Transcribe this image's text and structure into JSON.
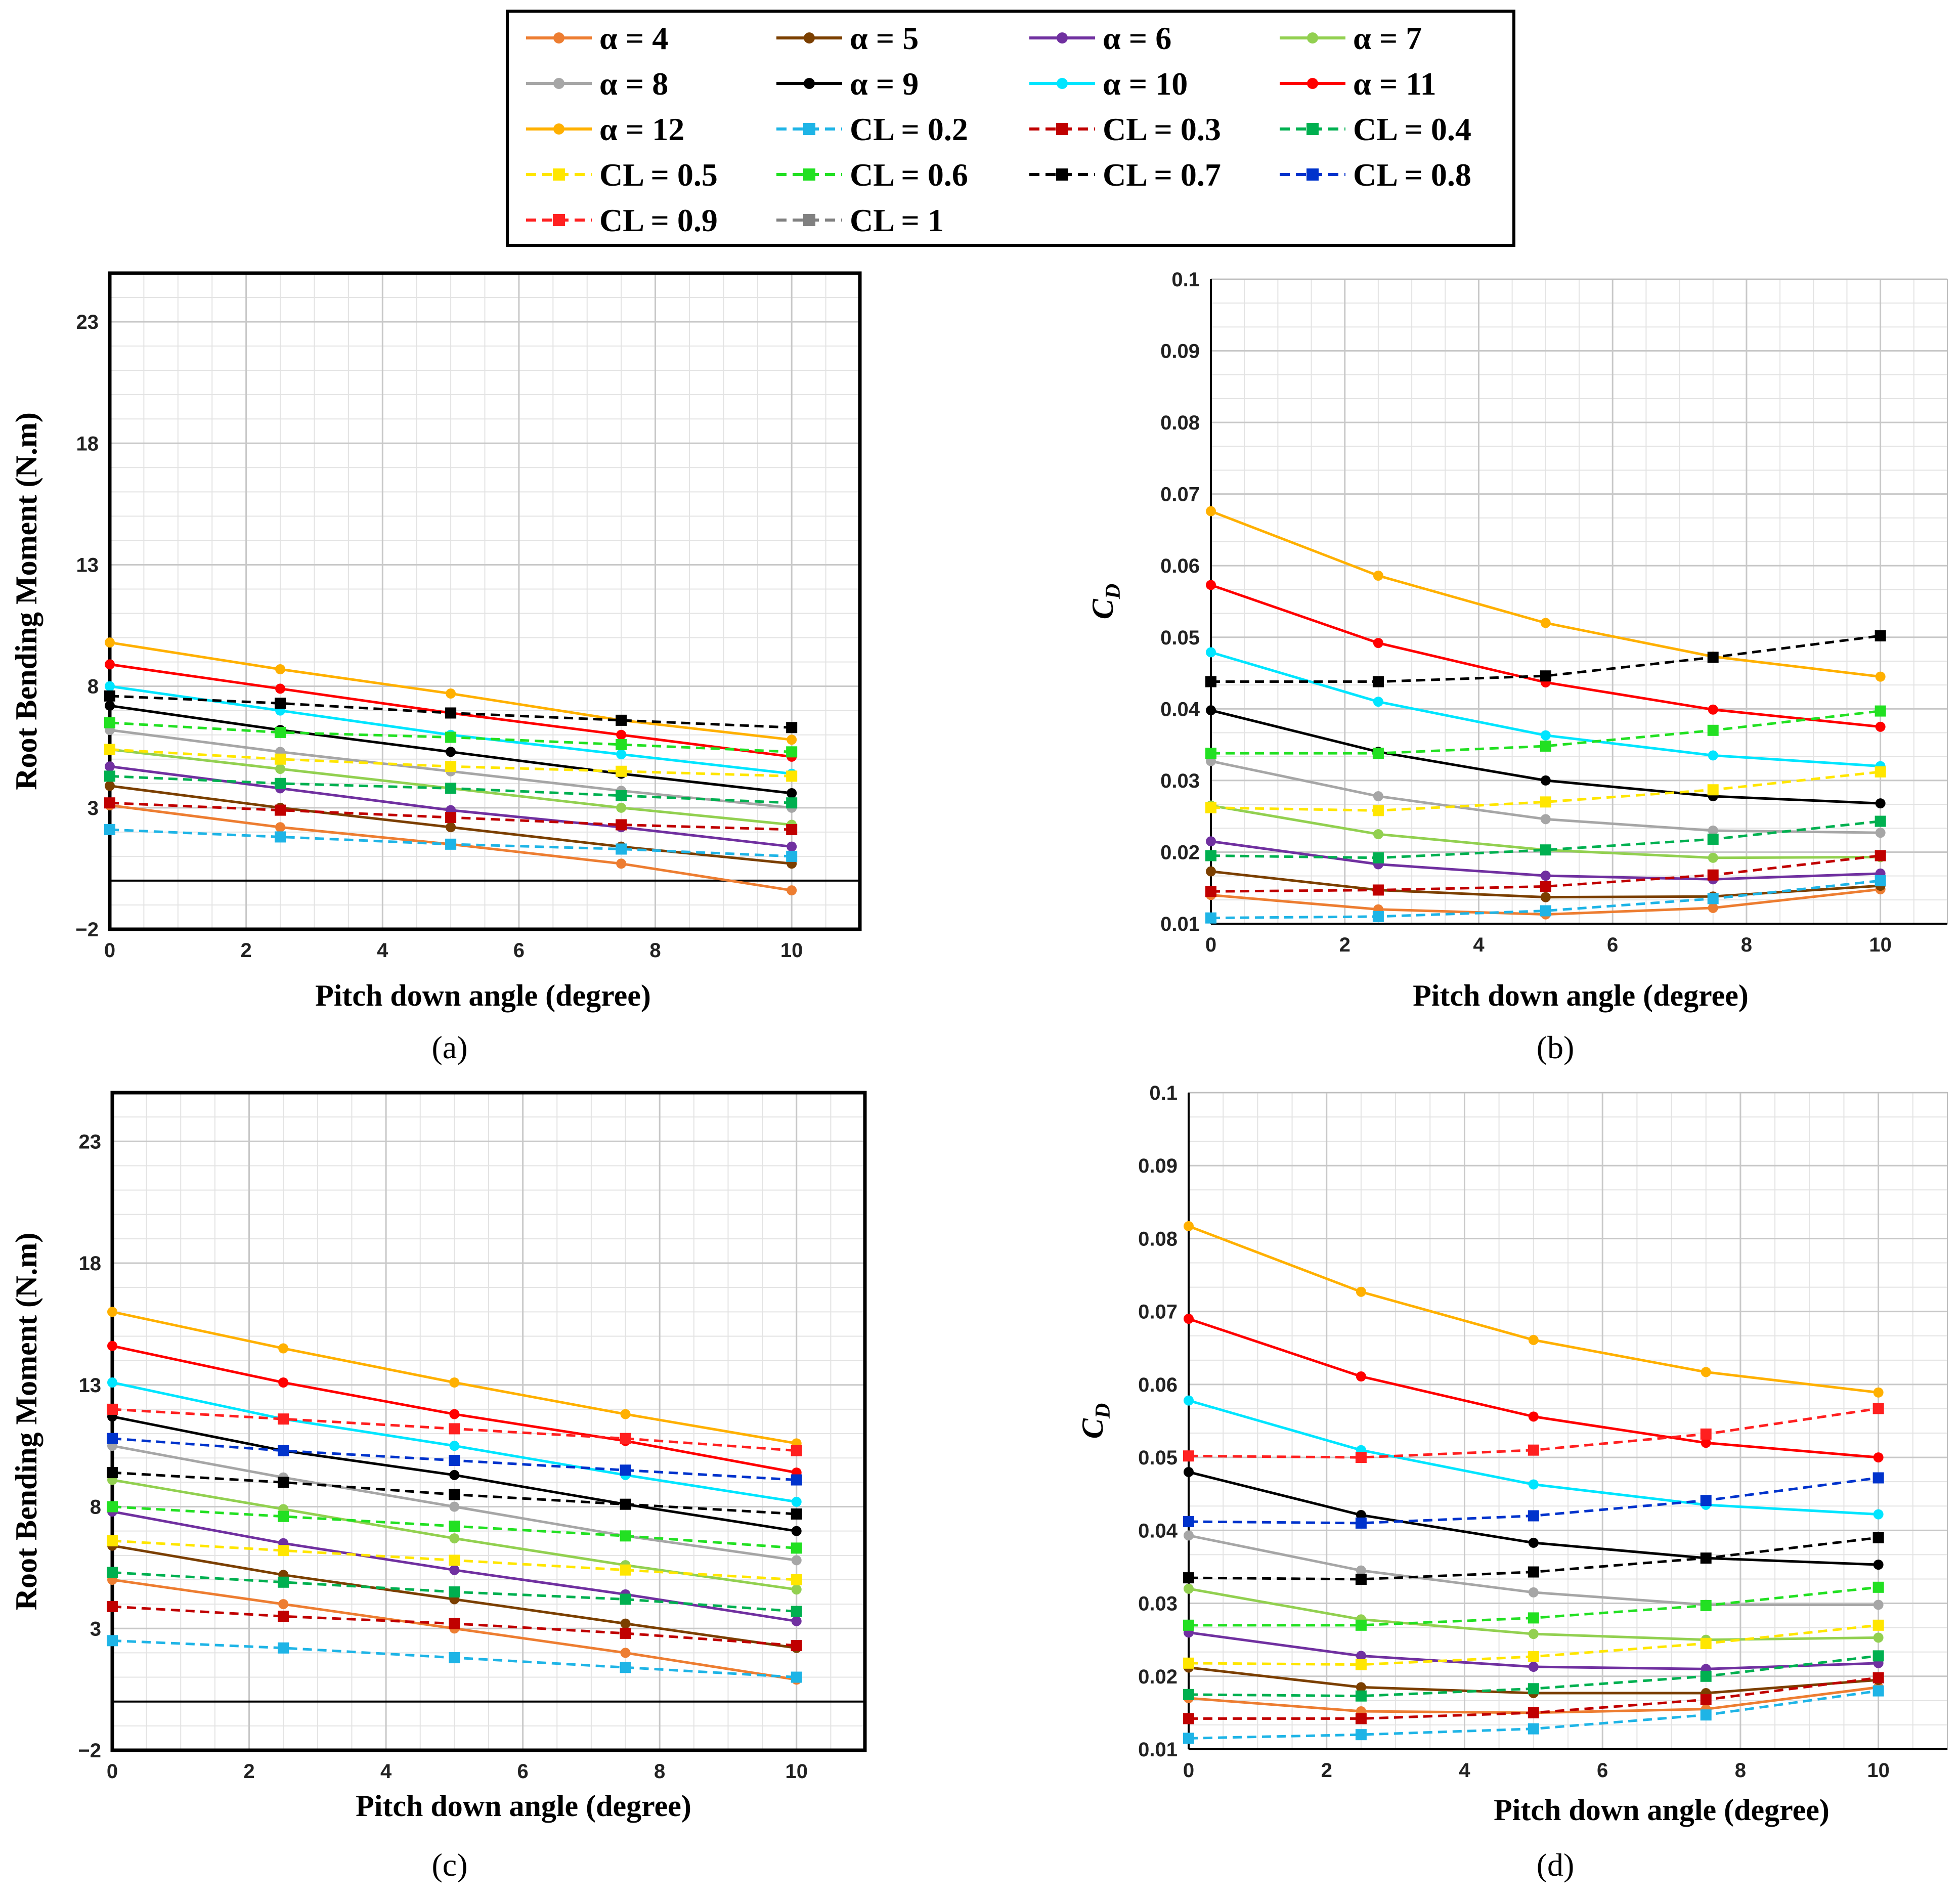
{
  "figure": {
    "panel_labels": [
      "(a)",
      "(b)",
      "(c)",
      "(d)"
    ]
  },
  "legend": [
    {
      "label": "α = 4",
      "color": "#ED7D31",
      "style": "solid",
      "marker": "circle"
    },
    {
      "label": "α = 5",
      "color": "#7B3F00",
      "style": "solid",
      "marker": "circle"
    },
    {
      "label": "α = 6",
      "color": "#7030A0",
      "style": "solid",
      "marker": "circle"
    },
    {
      "label": "α = 7",
      "color": "#92D050",
      "style": "solid",
      "marker": "circle"
    },
    {
      "label": "α = 8",
      "color": "#A6A6A6",
      "style": "solid",
      "marker": "circle"
    },
    {
      "label": "α = 9",
      "color": "#000000",
      "style": "solid",
      "marker": "circle"
    },
    {
      "label": "α = 10",
      "color": "#00E5FF",
      "style": "solid",
      "marker": "circle"
    },
    {
      "label": "α = 11",
      "color": "#FF0000",
      "style": "solid",
      "marker": "circle"
    },
    {
      "label": "α = 12",
      "color": "#FFB000",
      "style": "solid",
      "marker": "circle"
    },
    {
      "label": "CL = 0.2",
      "color": "#1EB4E6",
      "style": "dashed",
      "marker": "square"
    },
    {
      "label": "CL = 0.3",
      "color": "#C00000",
      "style": "dashed",
      "marker": "square"
    },
    {
      "label": "CL = 0.4",
      "color": "#00B050",
      "style": "dashed",
      "marker": "square"
    },
    {
      "label": "CL = 0.5",
      "color": "#FFE600",
      "style": "dashed",
      "marker": "square"
    },
    {
      "label": "CL = 0.6",
      "color": "#22E022",
      "style": "dashed",
      "marker": "square"
    },
    {
      "label": "CL = 0.7",
      "color": "#000000",
      "style": "dashed",
      "marker": "square"
    },
    {
      "label": "CL = 0.8",
      "color": "#0033CC",
      "style": "dashed",
      "marker": "square"
    },
    {
      "label": "CL = 0.9",
      "color": "#FF2020",
      "style": "dashed",
      "marker": "square"
    },
    {
      "label": "CL = 1",
      "color": "#808080",
      "style": "dashed",
      "marker": "square"
    }
  ],
  "chart_data": [
    {
      "id": "a",
      "type": "line",
      "panel_label": "(a)",
      "xlabel": "Pitch down angle (degree)",
      "ylabel": "Root Bending Moment (N.m)",
      "xlim": [
        0,
        11
      ],
      "ylim": [
        -2,
        25
      ],
      "xticks": [
        0,
        2,
        4,
        6,
        8,
        10
      ],
      "xtick_labels": [
        "0",
        "2",
        "4",
        "6",
        "8",
        "10"
      ],
      "yticks": [
        -2,
        3,
        8,
        13,
        18,
        23
      ],
      "ytick_labels": [
        "−2",
        "3",
        "8",
        "13",
        "18",
        "23"
      ],
      "x": [
        0,
        2.5,
        5,
        7.5,
        10
      ],
      "series": [
        {
          "name": "α = 4",
          "values": [
            3.1,
            2.2,
            1.5,
            0.7,
            -0.4
          ]
        },
        {
          "name": "α = 5",
          "values": [
            3.9,
            3.0,
            2.2,
            1.4,
            0.7
          ]
        },
        {
          "name": "α = 6",
          "values": [
            4.7,
            3.8,
            2.9,
            2.2,
            1.4
          ]
        },
        {
          "name": "α = 7",
          "values": [
            5.4,
            4.6,
            3.8,
            3.0,
            2.3
          ]
        },
        {
          "name": "α = 8",
          "values": [
            6.2,
            5.3,
            4.5,
            3.7,
            3.0
          ]
        },
        {
          "name": "α = 9",
          "values": [
            7.2,
            6.2,
            5.3,
            4.4,
            3.6
          ]
        },
        {
          "name": "α = 10",
          "values": [
            8.0,
            7.0,
            6.0,
            5.2,
            4.4
          ]
        },
        {
          "name": "α = 11",
          "values": [
            8.9,
            7.9,
            6.9,
            6.0,
            5.1
          ]
        },
        {
          "name": "α = 12",
          "values": [
            9.8,
            8.7,
            7.7,
            6.6,
            5.8
          ]
        },
        {
          "name": "CL = 0.2",
          "values": [
            2.1,
            1.8,
            1.5,
            1.3,
            1.0
          ]
        },
        {
          "name": "CL = 0.3",
          "values": [
            3.2,
            2.9,
            2.6,
            2.3,
            2.1
          ]
        },
        {
          "name": "CL = 0.4",
          "values": [
            4.3,
            4.0,
            3.8,
            3.5,
            3.2
          ]
        },
        {
          "name": "CL = 0.5",
          "values": [
            5.4,
            5.0,
            4.7,
            4.5,
            4.3
          ]
        },
        {
          "name": "CL = 0.6",
          "values": [
            6.5,
            6.1,
            5.9,
            5.6,
            5.3
          ]
        },
        {
          "name": "CL = 0.7",
          "values": [
            7.6,
            7.3,
            6.9,
            6.6,
            6.3
          ]
        }
      ]
    },
    {
      "id": "b",
      "type": "line",
      "panel_label": "(b)",
      "xlabel": "Pitch down angle (degree)",
      "ylabel": "C_D",
      "xlim": [
        0,
        11
      ],
      "ylim": [
        0.01,
        0.1
      ],
      "xticks": [
        0,
        2,
        4,
        6,
        8,
        10
      ],
      "xtick_labels": [
        "0",
        "2",
        "4",
        "6",
        "8",
        "10"
      ],
      "yticks": [
        0.01,
        0.02,
        0.03,
        0.04,
        0.05,
        0.06,
        0.07,
        0.08,
        0.09,
        0.1
      ],
      "ytick_labels": [
        "0.01",
        "0.02",
        "0.03",
        "0.04",
        "0.05",
        "0.06",
        "0.07",
        "0.08",
        "0.09",
        "0.1"
      ],
      "x": [
        0,
        2.5,
        5,
        7.5,
        10
      ],
      "series": [
        {
          "name": "α = 4",
          "values": [
            0.014,
            0.012,
            0.0113,
            0.0122,
            0.0148
          ]
        },
        {
          "name": "α = 5",
          "values": [
            0.0173,
            0.0147,
            0.0137,
            0.0138,
            0.0153
          ]
        },
        {
          "name": "α = 6",
          "values": [
            0.0215,
            0.0183,
            0.0167,
            0.0162,
            0.017
          ]
        },
        {
          "name": "α = 7",
          "values": [
            0.0265,
            0.0225,
            0.0203,
            0.0192,
            0.0193
          ]
        },
        {
          "name": "α = 8",
          "values": [
            0.0327,
            0.0278,
            0.0246,
            0.023,
            0.0227
          ]
        },
        {
          "name": "α = 9",
          "values": [
            0.0398,
            0.034,
            0.03,
            0.0278,
            0.0268
          ]
        },
        {
          "name": "α = 10",
          "values": [
            0.0479,
            0.041,
            0.0363,
            0.0335,
            0.032
          ]
        },
        {
          "name": "α = 11",
          "values": [
            0.0573,
            0.0492,
            0.0437,
            0.0399,
            0.0375
          ]
        },
        {
          "name": "α = 12",
          "values": [
            0.0676,
            0.0586,
            0.052,
            0.0473,
            0.0445
          ]
        },
        {
          "name": "CL = 0.2",
          "values": [
            0.0108,
            0.011,
            0.0118,
            0.0135,
            0.016
          ]
        },
        {
          "name": "CL = 0.3",
          "values": [
            0.0145,
            0.0147,
            0.0152,
            0.0168,
            0.0195
          ]
        },
        {
          "name": "CL = 0.4",
          "values": [
            0.0195,
            0.0192,
            0.0203,
            0.0218,
            0.0243
          ]
        },
        {
          "name": "CL = 0.5",
          "values": [
            0.0262,
            0.0258,
            0.027,
            0.0287,
            0.0312
          ]
        },
        {
          "name": "CL = 0.6",
          "values": [
            0.0338,
            0.0338,
            0.0348,
            0.037,
            0.0397
          ]
        },
        {
          "name": "CL = 0.7",
          "values": [
            0.0438,
            0.0438,
            0.0446,
            0.0472,
            0.0502
          ]
        }
      ]
    },
    {
      "id": "c",
      "type": "line",
      "panel_label": "(c)",
      "xlabel": "Pitch down angle (degree)",
      "ylabel": "Root Bending Moment (N.m)",
      "xlim": [
        0,
        11
      ],
      "ylim": [
        -2,
        25
      ],
      "xticks": [
        0,
        2,
        4,
        6,
        8,
        10
      ],
      "xtick_labels": [
        "0",
        "2",
        "4",
        "6",
        "8",
        "10"
      ],
      "yticks": [
        -2,
        3,
        8,
        13,
        18,
        23
      ],
      "ytick_labels": [
        "−2",
        "3",
        "8",
        "13",
        "18",
        "23"
      ],
      "x": [
        0,
        2.5,
        5,
        7.5,
        10
      ],
      "series": [
        {
          "name": "α = 4",
          "values": [
            5.0,
            4.0,
            3.0,
            2.0,
            0.9
          ]
        },
        {
          "name": "α = 5",
          "values": [
            6.4,
            5.2,
            4.2,
            3.2,
            2.2
          ]
        },
        {
          "name": "α = 6",
          "values": [
            7.8,
            6.5,
            5.4,
            4.4,
            3.3
          ]
        },
        {
          "name": "α = 7",
          "values": [
            9.1,
            7.9,
            6.7,
            5.6,
            4.6
          ]
        },
        {
          "name": "α = 8",
          "values": [
            10.5,
            9.2,
            8.0,
            6.8,
            5.8
          ]
        },
        {
          "name": "α = 9",
          "values": [
            11.7,
            10.3,
            9.3,
            8.1,
            7.0
          ]
        },
        {
          "name": "α = 10",
          "values": [
            13.1,
            11.6,
            10.5,
            9.3,
            8.2
          ]
        },
        {
          "name": "α = 11",
          "values": [
            14.6,
            13.1,
            11.8,
            10.7,
            9.4
          ]
        },
        {
          "name": "α = 12",
          "values": [
            16.0,
            14.5,
            13.1,
            11.8,
            10.6
          ]
        },
        {
          "name": "CL = 0.2",
          "values": [
            2.5,
            2.2,
            1.8,
            1.4,
            1.0
          ]
        },
        {
          "name": "CL = 0.3",
          "values": [
            3.9,
            3.5,
            3.2,
            2.8,
            2.3
          ]
        },
        {
          "name": "CL = 0.4",
          "values": [
            5.3,
            4.9,
            4.5,
            4.2,
            3.7
          ]
        },
        {
          "name": "CL = 0.5",
          "values": [
            6.6,
            6.2,
            5.8,
            5.4,
            5.0
          ]
        },
        {
          "name": "CL = 0.6",
          "values": [
            8.0,
            7.6,
            7.2,
            6.8,
            6.3
          ]
        },
        {
          "name": "CL = 0.7",
          "values": [
            9.4,
            9.0,
            8.5,
            8.1,
            7.7
          ]
        },
        {
          "name": "CL = 0.8",
          "values": [
            10.8,
            10.3,
            9.9,
            9.5,
            9.1
          ]
        },
        {
          "name": "CL = 0.9",
          "values": [
            12.0,
            11.6,
            11.2,
            10.8,
            10.3
          ]
        }
      ]
    },
    {
      "id": "d",
      "type": "line",
      "panel_label": "(d)",
      "xlabel": "Pitch down angle (degree)",
      "ylabel": "C_D",
      "xlim": [
        0,
        11
      ],
      "ylim": [
        0.01,
        0.1
      ],
      "xticks": [
        0,
        2,
        4,
        6,
        8,
        10
      ],
      "xtick_labels": [
        "0",
        "2",
        "4",
        "6",
        "8",
        "10"
      ],
      "yticks": [
        0.01,
        0.02,
        0.03,
        0.04,
        0.05,
        0.06,
        0.07,
        0.08,
        0.09,
        0.1
      ],
      "ytick_labels": [
        "0.01",
        "0.02",
        "0.03",
        "0.04",
        "0.05",
        "0.06",
        "0.07",
        "0.08",
        "0.09",
        "0.1"
      ],
      "x": [
        0,
        2.5,
        5,
        7.5,
        10
      ],
      "series": [
        {
          "name": "α = 4",
          "values": [
            0.017,
            0.0152,
            0.015,
            0.0155,
            0.0185
          ]
        },
        {
          "name": "α = 5",
          "values": [
            0.0212,
            0.0185,
            0.0177,
            0.0177,
            0.0195
          ]
        },
        {
          "name": "α = 6",
          "values": [
            0.026,
            0.0228,
            0.0213,
            0.021,
            0.0218
          ]
        },
        {
          "name": "α = 7",
          "values": [
            0.032,
            0.0278,
            0.0258,
            0.025,
            0.0253
          ]
        },
        {
          "name": "α = 8",
          "values": [
            0.0393,
            0.0345,
            0.0315,
            0.0298,
            0.0298
          ]
        },
        {
          "name": "α = 9",
          "values": [
            0.048,
            0.0421,
            0.0383,
            0.0362,
            0.0353
          ]
        },
        {
          "name": "α = 10",
          "values": [
            0.0578,
            0.051,
            0.0463,
            0.0435,
            0.0422
          ]
        },
        {
          "name": "α = 11",
          "values": [
            0.069,
            0.0611,
            0.0556,
            0.052,
            0.05
          ]
        },
        {
          "name": "α = 12",
          "values": [
            0.0817,
            0.0727,
            0.0661,
            0.0617,
            0.0589
          ]
        },
        {
          "name": "CL = 0.2",
          "values": [
            0.0115,
            0.012,
            0.0128,
            0.0147,
            0.018
          ]
        },
        {
          "name": "CL = 0.3",
          "values": [
            0.0142,
            0.0142,
            0.015,
            0.0168,
            0.0198
          ]
        },
        {
          "name": "CL = 0.4",
          "values": [
            0.0175,
            0.0173,
            0.0183,
            0.02,
            0.0228
          ]
        },
        {
          "name": "CL = 0.5",
          "values": [
            0.0218,
            0.0216,
            0.0227,
            0.0245,
            0.027
          ]
        },
        {
          "name": "CL = 0.6",
          "values": [
            0.027,
            0.027,
            0.028,
            0.0297,
            0.0322
          ]
        },
        {
          "name": "CL = 0.7",
          "values": [
            0.0335,
            0.0333,
            0.0343,
            0.0362,
            0.039
          ]
        },
        {
          "name": "CL = 0.8",
          "values": [
            0.0412,
            0.041,
            0.042,
            0.0441,
            0.0472
          ]
        },
        {
          "name": "CL = 0.9",
          "values": [
            0.0502,
            0.05,
            0.051,
            0.0532,
            0.0567
          ]
        }
      ]
    }
  ]
}
